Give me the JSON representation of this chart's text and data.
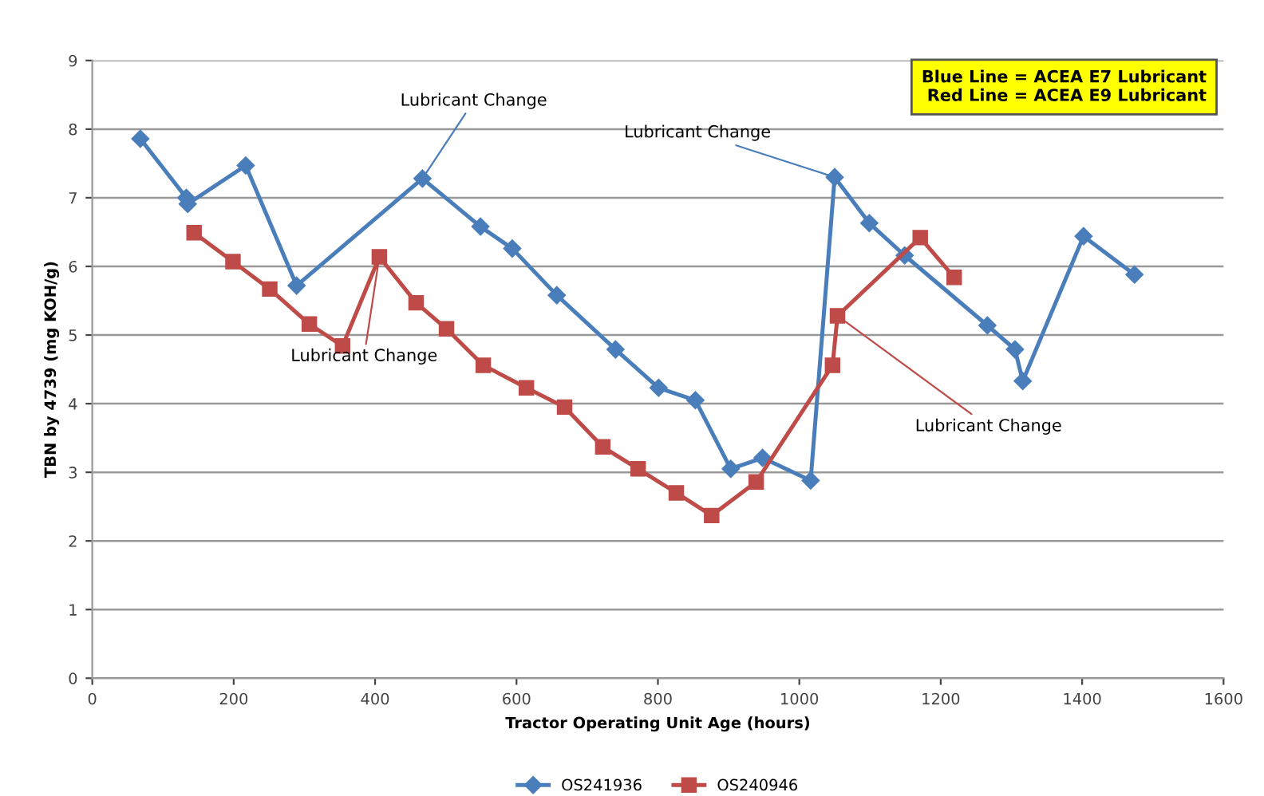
{
  "chart_data": {
    "type": "line",
    "xlabel": "Tractor Operating Unit Age (hours)",
    "ylabel": "TBN by 4739 (mg KOH/g)",
    "xlim": [
      0,
      1600
    ],
    "xticks": [
      0,
      200,
      400,
      600,
      800,
      1000,
      1200,
      1400,
      1600
    ],
    "ylim": [
      0,
      9
    ],
    "yticks": [
      0,
      1,
      2,
      3,
      4,
      5,
      6,
      7,
      8,
      9
    ],
    "grid": "y",
    "legend": "bottom",
    "series": [
      {
        "name": "OS241936",
        "color": "#4a7ebb",
        "marker": "diamond",
        "x": [
          68,
          133,
          135,
          217,
          289,
          467,
          549,
          594,
          657,
          740,
          801,
          853,
          903,
          948,
          1016,
          1050,
          1099,
          1149,
          1266,
          1305,
          1316,
          1402,
          1474
        ],
        "values": [
          7.86,
          7.0,
          6.91,
          7.47,
          5.72,
          7.28,
          6.58,
          6.26,
          5.58,
          4.79,
          4.23,
          4.05,
          3.05,
          3.21,
          2.88,
          7.3,
          6.63,
          6.16,
          5.14,
          4.79,
          4.33,
          6.44,
          5.88
        ]
      },
      {
        "name": "OS240946",
        "color": "#be4b48",
        "marker": "square",
        "x": [
          144,
          199,
          251,
          307,
          354,
          406,
          458,
          501,
          553,
          614,
          668,
          722,
          772,
          826,
          876,
          939,
          1047,
          1054,
          1171,
          1219
        ],
        "values": [
          6.49,
          6.07,
          5.67,
          5.16,
          4.84,
          6.14,
          5.47,
          5.09,
          4.56,
          4.23,
          3.95,
          3.37,
          3.05,
          2.7,
          2.37,
          2.86,
          4.56,
          5.28,
          6.42,
          5.84
        ]
      }
    ],
    "annotations": [
      {
        "text": "Lubricant Change",
        "x": 467,
        "y": 7.28
      },
      {
        "text": "Lubricant Change",
        "x": 1050,
        "y": 7.3
      },
      {
        "text": "Lubricant Change",
        "x": 406,
        "y": 6.14
      },
      {
        "text": "Lubricant Change",
        "x": 1054,
        "y": 5.28
      },
      "Blue Line = ACEA E7 Lubricant\nRed Line = ACEA E9 Lubricant"
    ]
  }
}
